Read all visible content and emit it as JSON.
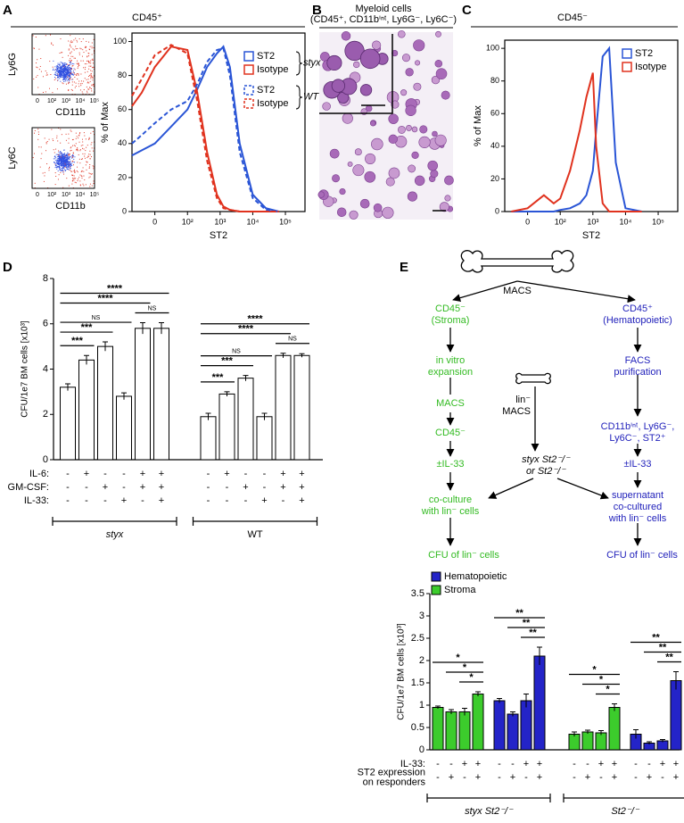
{
  "figure": {
    "panels": [
      "A",
      "B",
      "C",
      "D",
      "E"
    ],
    "a_header": "CD45⁺",
    "c_header": "CD45⁻",
    "dotplots": [
      {
        "ylabel": "Ly6G",
        "xlabel": "CD11b"
      },
      {
        "ylabel": "Ly6C",
        "xlabel": "CD11b"
      }
    ],
    "dotplot_ticks": [
      "0",
      "10²",
      "10³",
      "10⁴",
      "10⁵"
    ],
    "b_title": [
      "Myeloid cells",
      "(CD45⁺, CD11bⁱⁿᵗ, Ly6G⁻, Ly6C⁻)"
    ],
    "diagram": {
      "nodes": [
        {
          "lines": [
            "MACS"
          ],
          "color": "#000000"
        },
        {
          "lines": [
            "CD45⁻",
            "(Stroma)"
          ],
          "color": "#33bb22"
        },
        {
          "lines": [
            "CD45⁺",
            "(Hematopoietic)"
          ],
          "color": "#2222bb"
        },
        {
          "lines": [
            "in vitro",
            "expansion"
          ],
          "color": "#33bb22"
        },
        {
          "lines": [
            "MACS"
          ],
          "color": "#33bb22"
        },
        {
          "lines": [
            "CD45⁻"
          ],
          "color": "#33bb22"
        },
        {
          "lines": [
            "FACS",
            "purification"
          ],
          "color": "#2222bb"
        },
        {
          "lines": [
            "CD11bⁱⁿᵗ, Ly6G⁻,",
            "Ly6C⁻, ST2⁺"
          ],
          "color": "#2222bb"
        },
        {
          "lines": [
            "lin⁻",
            "MACS"
          ],
          "color": "#000000"
        },
        {
          "lines": [
            "styx St2⁻/⁻",
            "or St2⁻/⁻"
          ],
          "color": "#000000"
        },
        {
          "lines": [
            "±IL-33"
          ],
          "color": "#33bb22"
        },
        {
          "lines": [
            "±IL-33"
          ],
          "color": "#2222bb"
        },
        {
          "lines": [
            "co-culture",
            "with lin⁻ cells"
          ],
          "color": "#33bb22"
        },
        {
          "lines": [
            "supernatant",
            "co-cultured",
            "with lin⁻ cells"
          ],
          "color": "#2222bb"
        },
        {
          "lines": [
            "CFU of lin⁻ cells"
          ],
          "color": "#33bb22"
        },
        {
          "lines": [
            "CFU of lin⁻ cells"
          ],
          "color": "#2222bb"
        }
      ]
    }
  },
  "chart_data": [
    {
      "type": "line",
      "ylabel": "% of Max",
      "xlabel": "ST2",
      "x": [
        0.3,
        0.6,
        1,
        1.5,
        2,
        2.3,
        2.6,
        2.9,
        3.1,
        3.3,
        3.6,
        4,
        4.4,
        4.8
      ],
      "legend_groups": [
        "styx",
        "WT"
      ],
      "series": [
        {
          "name": "ST2",
          "color": "#2a55d6",
          "dashed": false,
          "group": 0,
          "values": [
            33,
            36,
            40,
            50,
            60,
            72,
            85,
            93,
            97,
            85,
            40,
            10,
            2,
            0
          ]
        },
        {
          "name": "Isotype",
          "color": "#e0321e",
          "dashed": false,
          "group": 0,
          "values": [
            62,
            70,
            85,
            97,
            95,
            70,
            35,
            10,
            3,
            1,
            0,
            0,
            0,
            0
          ]
        },
        {
          "name": "ST2",
          "color": "#2a55d6",
          "dashed": true,
          "group": 1,
          "values": [
            40,
            45,
            52,
            60,
            65,
            75,
            88,
            95,
            96,
            80,
            35,
            8,
            1,
            0
          ]
        },
        {
          "name": "Isotype",
          "color": "#e0321e",
          "dashed": true,
          "group": 1,
          "values": [
            68,
            78,
            92,
            98,
            93,
            65,
            30,
            8,
            2,
            1,
            0,
            0,
            0,
            0
          ]
        }
      ],
      "xlim": [
        0.3,
        5.6
      ],
      "xticks": [
        {
          "value": 1,
          "label": "0"
        },
        {
          "value": 2,
          "label": "10²"
        },
        {
          "value": 3,
          "label": "10³"
        },
        {
          "value": 4,
          "label": "10⁴"
        },
        {
          "value": 5,
          "label": "10⁵"
        }
      ],
      "ylim": [
        0,
        105
      ],
      "yticks": [
        0,
        20,
        40,
        60,
        80,
        100
      ]
    },
    {
      "type": "line",
      "ylabel": "% of Max",
      "xlabel": "ST2",
      "x": [
        0.5,
        1,
        1.5,
        1.8,
        2,
        2.3,
        2.6,
        2.8,
        3,
        3.1,
        3.3,
        3.5,
        3.7,
        4,
        4.5
      ],
      "series": [
        {
          "name": "ST2",
          "color": "#2a55d6",
          "dashed": false,
          "values": [
            0,
            0,
            0,
            0,
            1,
            2,
            5,
            10,
            25,
            50,
            95,
            100,
            30,
            2,
            0
          ]
        },
        {
          "name": "Isotype",
          "color": "#e0321e",
          "dashed": false,
          "values": [
            0,
            2,
            10,
            5,
            8,
            25,
            50,
            70,
            85,
            40,
            5,
            0,
            0,
            0,
            0
          ]
        }
      ],
      "xlim": [
        0.3,
        5.6
      ],
      "xticks": [
        {
          "value": 1,
          "label": "0"
        },
        {
          "value": 2,
          "label": "10²"
        },
        {
          "value": 3,
          "label": "10³"
        },
        {
          "value": 4,
          "label": "10⁴"
        },
        {
          "value": 5,
          "label": "10⁵"
        }
      ],
      "ylim": [
        0,
        105
      ],
      "yticks": [
        0,
        20,
        40,
        60,
        80,
        100
      ]
    },
    {
      "type": "bar",
      "ylabel": "CFU/1e7 BM cells [x10³]",
      "categories": [
        null,
        null,
        null,
        null,
        null,
        null,
        null,
        null,
        null,
        null,
        null,
        null
      ],
      "series": [
        {
          "color": "#ffffff",
          "values": [
            3.2,
            4.4,
            5.0,
            2.8,
            5.8,
            5.8,
            1.9,
            2.9,
            3.6,
            1.9,
            4.6,
            4.6
          ],
          "errors": [
            0.15,
            0.2,
            0.2,
            0.15,
            0.25,
            0.25,
            0.15,
            0.1,
            0.12,
            0.15,
            0.1,
            0.08
          ]
        }
      ],
      "ylim": [
        0,
        8
      ],
      "yticks": [
        0,
        2,
        4,
        6,
        8
      ],
      "treatments": [
        {
          "name": [
            "IL-6:"
          ],
          "marks": [
            "-",
            "+",
            "-",
            "-",
            "+",
            "+",
            "-",
            "+",
            "-",
            "-",
            "+",
            "+"
          ]
        },
        {
          "name": [
            "GM-CSF:"
          ],
          "marks": [
            "-",
            "-",
            "+",
            "-",
            "+",
            "+",
            "-",
            "-",
            "+",
            "-",
            "+",
            "+"
          ]
        },
        {
          "name": [
            "IL-33:"
          ],
          "marks": [
            "-",
            "-",
            "-",
            "+",
            "-",
            "+",
            "-",
            "-",
            "-",
            "+",
            "-",
            "+"
          ]
        }
      ],
      "groups": [
        {
          "name": "styx",
          "italic": true,
          "from": 0,
          "to": 5
        },
        {
          "name": "WT",
          "italic": false,
          "from": 6,
          "to": 11
        }
      ],
      "significance": [
        {
          "label": "****",
          "from": 0,
          "to": 5
        },
        {
          "label": "****",
          "from": 0,
          "to": 4
        },
        {
          "label": "NS",
          "from": 0,
          "to": 3
        },
        {
          "label": "***",
          "from": 0,
          "to": 2
        },
        {
          "label": "***",
          "from": 0,
          "to": 1
        },
        {
          "label": "NS",
          "from": 4,
          "to": 5
        },
        {
          "label": "****",
          "from": 6,
          "to": 11
        },
        {
          "label": "****",
          "from": 6,
          "to": 10
        },
        {
          "label": "NS",
          "from": 6,
          "to": 9
        },
        {
          "label": "***",
          "from": 6,
          "to": 8
        },
        {
          "label": "***",
          "from": 6,
          "to": 7
        },
        {
          "label": "NS",
          "from": 10,
          "to": 11
        }
      ]
    },
    {
      "type": "bar",
      "ylabel": "CFU/1e7 BM cells [x10³]",
      "categories": [
        null,
        null,
        null,
        null,
        null,
        null,
        null,
        null,
        null,
        null,
        null,
        null,
        null,
        null,
        null,
        null
      ],
      "series": [
        {
          "name": "Hematopoietic",
          "color": "#2424c8",
          "values": [
            null,
            null,
            null,
            null,
            1.1,
            0.8,
            1.1,
            2.1,
            null,
            null,
            null,
            null,
            0.35,
            0.15,
            0.2,
            1.55
          ],
          "errors": [
            null,
            null,
            null,
            null,
            0.05,
            0.05,
            0.15,
            0.2,
            null,
            null,
            null,
            null,
            0.1,
            0.03,
            0.03,
            0.2
          ]
        },
        {
          "name": "Stroma",
          "color": "#3ccc2c",
          "values": [
            0.95,
            0.85,
            0.85,
            1.25,
            null,
            null,
            null,
            null,
            0.35,
            0.4,
            0.38,
            0.95,
            null,
            null,
            null,
            null
          ],
          "errors": [
            0.03,
            0.05,
            0.08,
            0.05,
            null,
            null,
            null,
            null,
            0.05,
            0.04,
            0.05,
            0.08,
            null,
            null,
            null,
            null
          ]
        }
      ],
      "ylim": [
        0,
        3.5
      ],
      "yticks": [
        0,
        0.5,
        1,
        1.5,
        2,
        2.5,
        3,
        3.5
      ],
      "treatments": [
        {
          "name": [
            "IL-33:"
          ],
          "marks": [
            "-",
            "-",
            "+",
            "+",
            "-",
            "-",
            "+",
            "+",
            "-",
            "-",
            "+",
            "+",
            "-",
            "-",
            "+",
            "+"
          ]
        },
        {
          "name": [
            "ST2 expression",
            "on responders"
          ],
          "marks": [
            "-",
            "+",
            "-",
            "+",
            "-",
            "+",
            "-",
            "+",
            "-",
            "+",
            "-",
            "+",
            "-",
            "+",
            "-",
            "+"
          ]
        }
      ],
      "groups": [
        {
          "name": "styx St2⁻/⁻",
          "italic": true,
          "from": 0,
          "to": 7
        },
        {
          "name": "St2⁻/⁻",
          "italic": true,
          "from": 8,
          "to": 15
        }
      ],
      "significance": [
        {
          "label": "*",
          "from": 0,
          "to": 3
        },
        {
          "label": "*",
          "from": 1,
          "to": 3
        },
        {
          "label": "*",
          "from": 2,
          "to": 3
        },
        {
          "label": "**",
          "from": 4,
          "to": 7
        },
        {
          "label": "**",
          "from": 5,
          "to": 7
        },
        {
          "label": "**",
          "from": 6,
          "to": 7
        },
        {
          "label": "*",
          "from": 8,
          "to": 11
        },
        {
          "label": "*",
          "from": 9,
          "to": 11
        },
        {
          "label": "*",
          "from": 10,
          "to": 11
        },
        {
          "label": "**",
          "from": 12,
          "to": 15
        },
        {
          "label": "**",
          "from": 13,
          "to": 15
        },
        {
          "label": "**",
          "from": 14,
          "to": 15
        }
      ]
    }
  ]
}
